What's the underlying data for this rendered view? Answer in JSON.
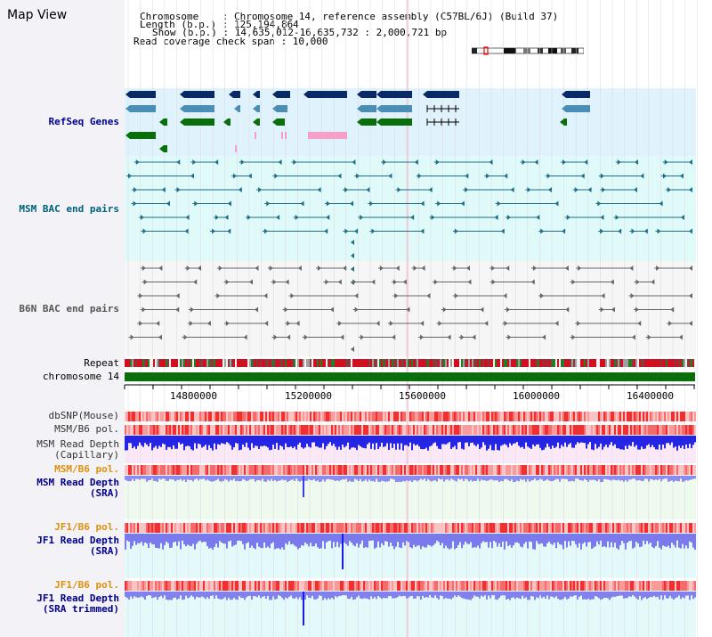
{
  "title": "Map View",
  "header": {
    "line1": "Chromosome    : Chromosome 14, reference assembly (C57BL/6J) (Build 37)",
    "line2": "Length (b.p.) : 125,194,864",
    "line3": "Show (b.p.) : 14,635,012-16,635,732 : 2,000,721 bp",
    "line4": "Read coverage check span : 10,000"
  },
  "tracks": {
    "refseq": "RefSeq Genes",
    "msm_bac": "MSM BAC end pairs",
    "b6n_bac": "B6N BAC end pairs",
    "repeat": "Repeat",
    "chromosome": "chromosome 14",
    "dbsnp": "dbSNP(Mouse)",
    "msm_b6_pol": "MSM/B6 pol.",
    "msm_depth_cap": "MSM Read Depth\n(Capillary)",
    "msm_b6_pol2": "MSM/B6 pol.",
    "msm_depth_sra": "MSM Read Depth\n(SRA)",
    "jf1_b6_pol": "JF1/B6 pol.",
    "jf1_depth_sra": "JF1 Read Depth\n(SRA)",
    "jf1_b6_pol2": "JF1/B6 pol.",
    "jf1_depth_trim": "JF1 Read Depth\n(SRA trimmed)"
  },
  "axis": {
    "ticks": [
      "14800000",
      "15200000",
      "15600000",
      "16000000",
      "16400000"
    ]
  },
  "colors": {
    "navy": "#0a2a66",
    "steel": "#4a8db5",
    "green": "#0a6e0a",
    "pink": "#f5a0c8",
    "teal": "#1b6f86",
    "gray": "#666666",
    "red": "#e0001a",
    "blue_depth": "#1a1aee",
    "blue_light": "#8888ee"
  }
}
